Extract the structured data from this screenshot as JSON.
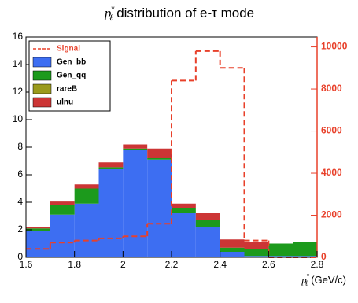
{
  "chart_data": {
    "type": "stacked-histogram",
    "title": {
      "variable": "p",
      "sup": "*",
      "sub": "ℓ",
      "text": "distribution of e-τ mode"
    },
    "x_label": {
      "variable": "p",
      "sup": "*",
      "sub": "ℓ",
      "text": "(GeV/c)"
    },
    "bins": [
      1.6,
      1.7,
      1.8,
      1.9,
      2.0,
      2.1,
      2.2,
      2.3,
      2.4,
      2.5,
      2.6,
      2.7,
      2.8
    ],
    "series": [
      {
        "name": "Signal",
        "color": "#e8402a",
        "axis": "y2",
        "style": "dashed-step",
        "values": [
          400,
          700,
          800,
          900,
          1000,
          1600,
          8400,
          9800,
          9000,
          800,
          0,
          0
        ]
      },
      {
        "name": "Gen_bb",
        "color": "#3d6ef2",
        "values": [
          1.9,
          3.1,
          3.9,
          6.4,
          7.8,
          7.1,
          3.2,
          2.2,
          0.4,
          0.1,
          0.1,
          0.1
        ]
      },
      {
        "name": "Gen_qq",
        "color": "#1c9a1c",
        "values": [
          0.2,
          0.7,
          1.1,
          0.15,
          0.1,
          0.1,
          0.4,
          0.5,
          0.3,
          0.5,
          0.9,
          1.0
        ]
      },
      {
        "name": "rareB",
        "color": "#9a9a1c",
        "values": [
          0,
          0,
          0,
          0,
          0,
          0,
          0,
          0,
          0,
          0,
          0,
          0
        ]
      },
      {
        "name": "ulnu",
        "color": "#cc3535",
        "values": [
          0.1,
          0.25,
          0.3,
          0.35,
          0.3,
          0.7,
          0.3,
          0.5,
          0.6,
          0.5,
          0,
          0
        ]
      }
    ],
    "xlim": [
      1.6,
      2.8
    ],
    "xticks": [
      1.6,
      1.8,
      2,
      2.2,
      2.4,
      2.6,
      2.8
    ],
    "ylim": [
      0,
      16
    ],
    "yticks": [
      0,
      2,
      4,
      6,
      8,
      10,
      12,
      14,
      16
    ],
    "y2lim": [
      0,
      10470
    ],
    "y2ticks": [
      0,
      2000,
      4000,
      6000,
      8000,
      10000
    ],
    "y2_color": "#e8402a",
    "legend": "top-left"
  }
}
